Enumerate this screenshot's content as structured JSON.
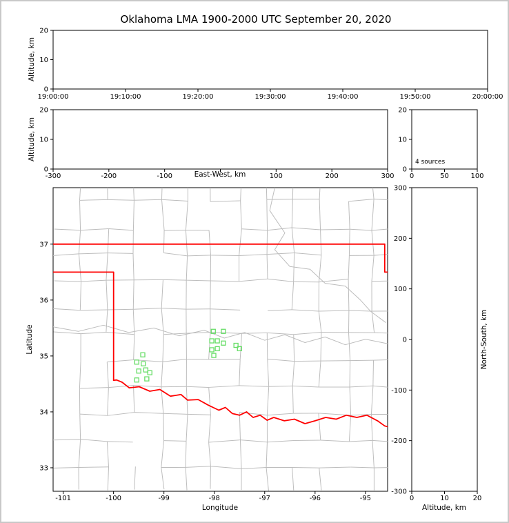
{
  "title": "Oklahoma LMA 1900-2000 UTC September 20, 2020",
  "colors": {
    "axis": "#000000",
    "county_line": "#bdbdbd",
    "state_border": "#ff0000",
    "source_marker": "#66dd66",
    "background": "#ffffff",
    "frame": "#c8c8c8"
  },
  "panels": {
    "time_height": {
      "ylabel": "Altitude, km",
      "x_tick_labels": [
        "19:00:00",
        "19:10:00",
        "19:20:00",
        "19:30:00",
        "19:40:00",
        "19:50:00",
        "20:00:00"
      ],
      "y_ticks": [
        0,
        10,
        20
      ],
      "y_range": [
        0,
        20
      ]
    },
    "ew_height": {
      "xlabel": "East-West, km",
      "ylabel": "Altitude, km",
      "x_ticks": [
        -300,
        -200,
        -100,
        0,
        100,
        200,
        300
      ],
      "x_tick_labels": [
        "-300",
        "-200",
        "-100",
        "",
        "100",
        "200",
        "300"
      ],
      "x_range": [
        -300,
        300
      ],
      "y_ticks": [
        0,
        10,
        20
      ],
      "y_range": [
        0,
        20
      ]
    },
    "alt_histogram": {
      "annotation": "4 sources",
      "x_ticks": [
        0,
        50,
        100
      ],
      "x_range": [
        0,
        100
      ],
      "y_ticks": [
        0,
        10,
        20
      ],
      "y_range": [
        0,
        20
      ]
    },
    "map": {
      "xlabel": "Longitude",
      "ylabel": "Latitude",
      "x_ticks": [
        -101,
        -100,
        -99,
        -98,
        -97,
        -96,
        -95
      ],
      "y_ticks": [
        33,
        34,
        35,
        36,
        37
      ],
      "lon_range": [
        -101.2,
        -94.56
      ],
      "lat_range": [
        32.58,
        38.01
      ]
    },
    "ns_height": {
      "xlabel": "Altitude, km",
      "ylabel_right": "North-South, km",
      "x_ticks": [
        0,
        10,
        20
      ],
      "x_range": [
        0,
        20
      ],
      "y_ticks": [
        -300,
        -200,
        -100,
        0,
        100,
        200,
        300
      ],
      "y_range": [
        -300,
        300
      ]
    }
  },
  "chart_data": {
    "type": "scatter",
    "title": "Oklahoma LMA 1900-2000 UTC September 20, 2020",
    "source_count_label": "4 sources",
    "sources_lon_lat": [
      [
        -98.02,
        35.44
      ],
      [
        -97.82,
        35.44
      ],
      [
        -98.05,
        35.27
      ],
      [
        -97.94,
        35.27
      ],
      [
        -97.82,
        35.23
      ],
      [
        -98.05,
        35.11
      ],
      [
        -97.94,
        35.13
      ],
      [
        -98.01,
        35.01
      ],
      [
        -97.57,
        35.19
      ],
      [
        -97.5,
        35.13
      ],
      [
        -99.42,
        35.02
      ],
      [
        -99.54,
        34.89
      ],
      [
        -99.41,
        34.86
      ],
      [
        -99.5,
        34.73
      ],
      [
        -99.36,
        34.75
      ],
      [
        -99.54,
        34.57
      ],
      [
        -99.34,
        34.59
      ],
      [
        -99.28,
        34.7
      ]
    ],
    "state_border_polylines_lon_lat": [
      [
        [
          -101.2,
          37.0
        ],
        [
          -94.618,
          37.0
        ]
      ],
      [
        [
          -94.618,
          37.0
        ],
        [
          -94.618,
          36.5
        ],
        [
          -94.5,
          36.5
        ]
      ],
      [
        [
          -101.2,
          36.5
        ],
        [
          -100.0,
          36.5
        ],
        [
          -100.0,
          34.565
        ]
      ],
      [
        [
          -100.0,
          34.565
        ],
        [
          -99.94,
          34.57
        ],
        [
          -99.83,
          34.53
        ],
        [
          -99.69,
          34.43
        ],
        [
          -99.49,
          34.45
        ],
        [
          -99.28,
          34.37
        ],
        [
          -99.08,
          34.4
        ],
        [
          -98.87,
          34.28
        ],
        [
          -98.66,
          34.31
        ],
        [
          -98.53,
          34.21
        ],
        [
          -98.32,
          34.22
        ],
        [
          -98.12,
          34.12
        ],
        [
          -97.91,
          34.03
        ],
        [
          -97.78,
          34.08
        ],
        [
          -97.64,
          33.97
        ],
        [
          -97.5,
          33.94
        ],
        [
          -97.36,
          34.0
        ],
        [
          -97.23,
          33.9
        ],
        [
          -97.09,
          33.94
        ],
        [
          -96.95,
          33.85
        ],
        [
          -96.82,
          33.9
        ],
        [
          -96.61,
          33.84
        ],
        [
          -96.41,
          33.87
        ],
        [
          -96.2,
          33.79
        ],
        [
          -96.0,
          33.84
        ],
        [
          -95.79,
          33.9
        ],
        [
          -95.58,
          33.87
        ],
        [
          -95.38,
          33.94
        ],
        [
          -95.17,
          33.9
        ],
        [
          -94.97,
          33.94
        ],
        [
          -94.76,
          33.84
        ],
        [
          -94.62,
          33.75
        ],
        [
          -94.5,
          33.72
        ]
      ]
    ],
    "rivers_lon_lat": [
      [
        [
          -101.2,
          35.52
        ],
        [
          -100.7,
          35.44
        ],
        [
          -100.2,
          35.55
        ],
        [
          -99.7,
          35.42
        ],
        [
          -99.2,
          35.5
        ],
        [
          -98.7,
          35.36
        ],
        [
          -98.2,
          35.46
        ],
        [
          -97.8,
          35.32
        ],
        [
          -97.4,
          35.42
        ],
        [
          -97.0,
          35.28
        ],
        [
          -96.6,
          35.38
        ],
        [
          -96.2,
          35.24
        ],
        [
          -95.8,
          35.34
        ],
        [
          -95.4,
          35.2
        ],
        [
          -95.0,
          35.3
        ],
        [
          -94.56,
          35.22
        ]
      ],
      [
        [
          -96.8,
          38.01
        ],
        [
          -96.9,
          37.6
        ],
        [
          -96.6,
          37.2
        ],
        [
          -96.8,
          36.9
        ],
        [
          -96.5,
          36.6
        ],
        [
          -96.1,
          36.55
        ],
        [
          -95.8,
          36.3
        ],
        [
          -95.4,
          36.25
        ],
        [
          -95.1,
          36.0
        ],
        [
          -94.9,
          35.8
        ],
        [
          -94.6,
          35.6
        ]
      ]
    ],
    "county_grid": {
      "dx": 0.53,
      "dy": 0.47,
      "jitter": 0.06,
      "seed": 11,
      "edge_keep_prob": 0.8
    }
  }
}
